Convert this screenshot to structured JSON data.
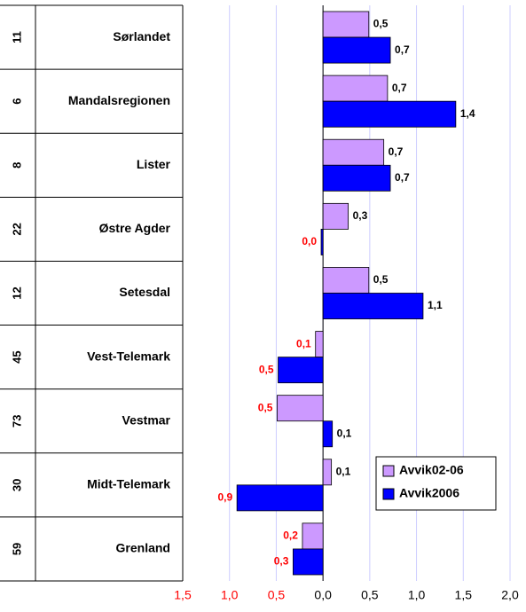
{
  "chart_data": {
    "type": "bar",
    "orientation": "horizontal",
    "codes": [
      "11",
      "6",
      "8",
      "22",
      "12",
      "45",
      "73",
      "30",
      "59"
    ],
    "categories": [
      "Sørlandet",
      "Mandalsregionen",
      "Lister",
      "Østre Agder",
      "Setesdal",
      "Vest-Telemark",
      "Vestmar",
      "Midt-Telemark",
      "Grenland"
    ],
    "series": [
      {
        "name": "Avvik02-06",
        "color": "#cc99ff",
        "values": [
          0.49,
          0.69,
          0.65,
          0.27,
          0.49,
          -0.08,
          -0.49,
          0.09,
          -0.22
        ],
        "value_labels": [
          "0,5",
          "0,7",
          "0,7",
          "0,3",
          "0,5",
          "0,1",
          "0,5",
          "0,1",
          "0,2"
        ]
      },
      {
        "name": "Avvik2006",
        "color": "#0000ff",
        "values": [
          0.72,
          1.42,
          0.72,
          -0.02,
          1.07,
          -0.48,
          0.1,
          -0.92,
          -0.32
        ],
        "value_labels": [
          "0,7",
          "1,4",
          "0,7",
          "0,0",
          "1,1",
          "0,5",
          "0,1",
          "0,9",
          "0,3"
        ]
      }
    ],
    "xlim": [
      -1.5,
      2.0
    ],
    "xticks": [
      {
        "value": -1.5,
        "label": "1,5"
      },
      {
        "value": -1.0,
        "label": "1,0"
      },
      {
        "value": -0.5,
        "label": "0,5"
      },
      {
        "value": 0.0,
        "label": "0,0"
      },
      {
        "value": 0.5,
        "label": "0,5"
      },
      {
        "value": 1.0,
        "label": "1,0"
      },
      {
        "value": 1.5,
        "label": "1,5"
      },
      {
        "value": 2.0,
        "label": "2,0"
      }
    ],
    "grid": true,
    "legend": "lower right",
    "negative_color": "#ff0000"
  }
}
